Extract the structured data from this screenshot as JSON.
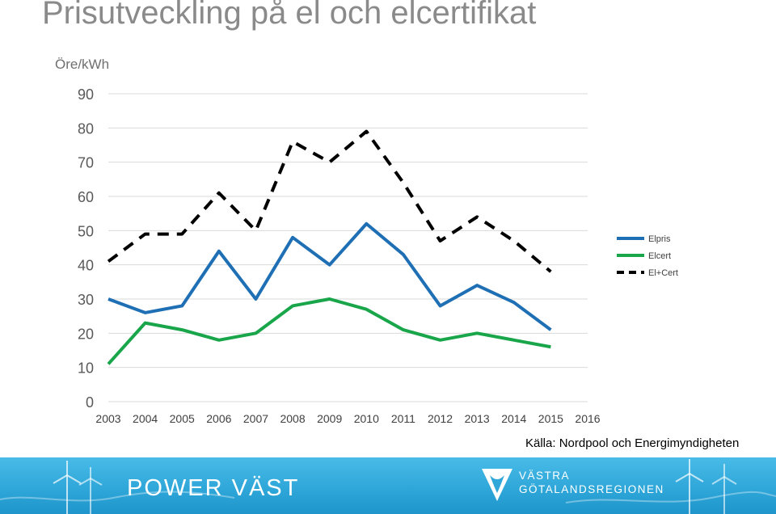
{
  "title": "Prisutveckling på el och elcertifikat",
  "unit_label": "Öre/kWh",
  "source": "Källa: Nordpool och Energimyndigheten",
  "footer": {
    "brand": "POWER VÄST",
    "logo_line1": "VÄSTRA",
    "logo_line2": "GÖTALANDSREGIONEN"
  },
  "chart_data": {
    "type": "line",
    "x": [
      "2003",
      "2004",
      "2005",
      "2006",
      "2007",
      "2008",
      "2009",
      "2010",
      "2011",
      "2012",
      "2013",
      "2014",
      "2015",
      "2016"
    ],
    "ylim": [
      0,
      90
    ],
    "yticks": [
      0,
      10,
      20,
      30,
      40,
      50,
      60,
      70,
      80,
      90
    ],
    "grid": true,
    "legend_position": "right",
    "series": [
      {
        "name": "Elpris",
        "color": "#1f6fb5",
        "dash": false,
        "values": [
          30,
          26,
          28,
          44,
          30,
          48,
          40,
          52,
          43,
          28,
          34,
          29,
          21,
          null
        ]
      },
      {
        "name": "Elcert",
        "color": "#19a64a",
        "dash": false,
        "values": [
          11,
          23,
          21,
          18,
          20,
          28,
          30,
          27,
          21,
          18,
          20,
          18,
          16,
          null
        ]
      },
      {
        "name": "El+Cert",
        "color": "#000000",
        "dash": true,
        "values": [
          41,
          49,
          49,
          61,
          50,
          76,
          70,
          79,
          64,
          47,
          54,
          47,
          38,
          null
        ]
      }
    ]
  }
}
